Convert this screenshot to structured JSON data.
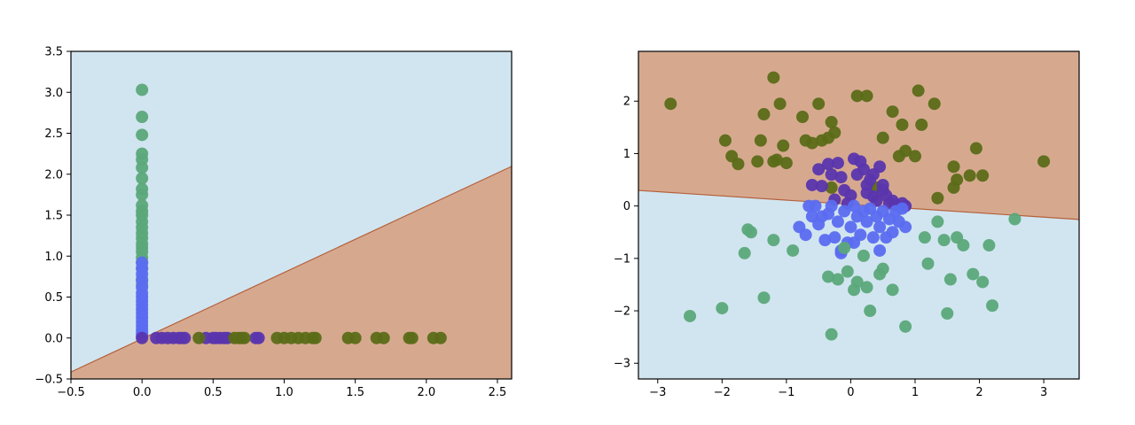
{
  "figure": {
    "background": "#ffffff"
  },
  "chart_data": [
    {
      "type": "scatter",
      "title": "",
      "xlabel": "",
      "ylabel": "",
      "xlim": [
        -0.5,
        2.6
      ],
      "ylim": [
        -0.5,
        3.5
      ],
      "xticks": [
        "−0.5",
        "0.0",
        "0.5",
        "1.0",
        "1.5",
        "2.0",
        "2.5"
      ],
      "xtick_values": [
        -0.5,
        0.0,
        0.5,
        1.0,
        1.5,
        2.0,
        2.5
      ],
      "yticks": [
        "−0.5",
        "0.0",
        "0.5",
        "1.0",
        "1.5",
        "2.0",
        "2.5",
        "3.0",
        "3.5"
      ],
      "ytick_values": [
        -0.5,
        0.0,
        0.5,
        1.0,
        1.5,
        2.0,
        2.5,
        3.0,
        3.5
      ],
      "grid": false,
      "legend": "none",
      "decision_regions": {
        "boundary_line": {
          "slope": 0.81,
          "intercept": -0.01
        },
        "above_color": "#d1e5f0",
        "below_color": "#d6a98f",
        "boundary_color": "#b5603a"
      },
      "series": [
        {
          "color": "#5ba87a",
          "x": [
            0.0,
            0.0,
            0.0,
            0.0,
            0.0,
            0.0,
            0.0,
            0.0,
            0.0,
            0.0,
            0.0,
            0.0,
            0.0,
            0.0,
            0.0,
            0.0,
            0.0,
            0.0,
            0.0,
            0.0,
            0.0,
            0.0,
            0.0,
            0.0
          ],
          "y": [
            3.03,
            2.7,
            2.48,
            2.25,
            2.18,
            2.08,
            1.95,
            1.82,
            1.75,
            1.62,
            1.55,
            1.5,
            1.42,
            1.35,
            1.28,
            1.22,
            1.15,
            1.1,
            1.05,
            0.98,
            0.92,
            0.85,
            0.72,
            0.65
          ]
        },
        {
          "color": "#5b6cf0",
          "x": [
            0.0,
            0.0,
            0.0,
            0.0,
            0.0,
            0.0,
            0.0,
            0.0,
            0.0,
            0.0,
            0.0,
            0.0,
            0.0,
            0.0,
            0.0,
            0.0,
            0.0
          ],
          "y": [
            0.92,
            0.85,
            0.78,
            0.7,
            0.62,
            0.55,
            0.5,
            0.45,
            0.4,
            0.35,
            0.3,
            0.25,
            0.2,
            0.15,
            0.1,
            0.06,
            0.03
          ]
        },
        {
          "color": "#5a35ad",
          "x": [
            0.0,
            0.1,
            0.14,
            0.18,
            0.22,
            0.26,
            0.28,
            0.3,
            0.45,
            0.5,
            0.52,
            0.55,
            0.58,
            0.6,
            0.8,
            0.82
          ],
          "y": [
            0.0,
            0.0,
            0.0,
            0.0,
            0.0,
            0.0,
            0.0,
            0.0,
            0.0,
            0.0,
            0.0,
            0.0,
            0.0,
            0.0,
            0.0,
            0.0
          ]
        },
        {
          "color": "#5b6b18",
          "x": [
            0.4,
            0.65,
            0.68,
            0.7,
            0.72,
            0.95,
            1.0,
            1.05,
            1.1,
            1.15,
            1.2,
            1.22,
            1.45,
            1.5,
            1.65,
            1.7,
            1.88,
            1.9,
            2.05,
            2.1
          ],
          "y": [
            0.0,
            0.0,
            0.0,
            0.0,
            0.0,
            0.0,
            0.0,
            0.0,
            0.0,
            0.0,
            0.0,
            0.0,
            0.0,
            0.0,
            0.0,
            0.0,
            0.0,
            0.0,
            0.0,
            0.0
          ]
        }
      ]
    },
    {
      "type": "scatter",
      "title": "",
      "xlabel": "",
      "ylabel": "",
      "xlim": [
        -3.3,
        3.55
      ],
      "ylim": [
        -3.3,
        2.95
      ],
      "xticks": [
        "−3",
        "−2",
        "−1",
        "0",
        "1",
        "2",
        "3"
      ],
      "xtick_values": [
        -3,
        -2,
        -1,
        0,
        1,
        2,
        3
      ],
      "yticks": [
        "−3",
        "−2",
        "−1",
        "0",
        "1",
        "2"
      ],
      "ytick_values": [
        -3,
        -2,
        -1,
        0,
        1,
        2
      ],
      "grid": false,
      "legend": "none",
      "decision_regions": {
        "boundary_line": {
          "slope": -0.081,
          "intercept": 0.03
        },
        "above_color": "#d6a98f",
        "below_color": "#d1e5f0",
        "boundary_color": "#b5603a"
      },
      "series": [
        {
          "color": "#5b6b18",
          "x": [
            -2.8,
            -1.95,
            -1.85,
            -1.75,
            -1.45,
            -1.4,
            -1.35,
            -1.2,
            -1.15,
            -1.1,
            -1.05,
            -1.0,
            -0.75,
            -0.7,
            -0.6,
            -0.5,
            -0.45,
            -0.35,
            -0.3,
            -0.25,
            -0.3,
            0.1,
            0.25,
            0.5,
            0.65,
            0.8,
            0.85,
            0.75,
            1.05,
            1.1,
            1.3,
            1.35,
            1.6,
            1.65,
            1.6,
            1.85,
            1.95,
            2.05,
            3.0,
            1.0,
            0.4,
            -1.2
          ],
          "y": [
            1.95,
            1.25,
            0.95,
            0.8,
            0.85,
            1.25,
            1.75,
            0.85,
            0.88,
            1.95,
            1.15,
            0.82,
            1.7,
            1.25,
            1.2,
            1.95,
            1.25,
            1.3,
            1.6,
            1.4,
            0.35,
            2.1,
            2.1,
            1.3,
            1.8,
            1.55,
            1.05,
            0.95,
            2.2,
            1.55,
            1.95,
            0.15,
            0.35,
            0.5,
            0.75,
            0.58,
            1.1,
            0.58,
            0.85,
            0.95,
            0.35,
            2.45
          ]
        },
        {
          "color": "#5a35ad",
          "x": [
            -0.6,
            -0.5,
            -0.45,
            -0.35,
            -0.3,
            -0.2,
            -0.15,
            -0.1,
            0.05,
            0.1,
            0.2,
            0.25,
            0.3,
            0.35,
            0.4,
            0.45,
            0.5,
            0.55,
            0.6,
            0.65,
            0.7,
            0.8,
            0.85,
            -0.25,
            0.0,
            0.15,
            0.35,
            0.5,
            -0.05,
            0.25
          ],
          "y": [
            0.4,
            0.7,
            0.38,
            0.8,
            0.6,
            0.82,
            0.55,
            0.3,
            0.9,
            0.6,
            0.7,
            0.25,
            0.5,
            0.18,
            0.1,
            0.75,
            0.4,
            0.2,
            0.05,
            0.1,
            0.02,
            0.05,
            0.0,
            0.12,
            0.2,
            0.85,
            0.6,
            0.3,
            0.05,
            0.4
          ]
        },
        {
          "color": "#5b6cf0",
          "x": [
            -0.8,
            -0.7,
            -0.6,
            -0.55,
            -0.5,
            -0.45,
            -0.4,
            -0.35,
            -0.3,
            -0.25,
            -0.2,
            -0.15,
            -0.1,
            -0.05,
            0.0,
            0.05,
            0.1,
            0.15,
            0.2,
            0.25,
            0.3,
            0.35,
            0.4,
            0.45,
            0.5,
            0.55,
            0.6,
            0.65,
            0.7,
            0.75,
            0.8,
            0.85,
            -0.65,
            -0.15,
            0.05,
            0.45
          ],
          "y": [
            -0.4,
            -0.55,
            -0.2,
            0.0,
            -0.35,
            -0.2,
            -0.65,
            -0.15,
            0.0,
            -0.6,
            -0.3,
            -0.85,
            -0.1,
            -0.7,
            -0.4,
            0.0,
            -0.2,
            -0.55,
            -0.1,
            -0.3,
            -0.05,
            -0.6,
            -0.2,
            -0.4,
            -0.1,
            -0.6,
            -0.25,
            -0.5,
            -0.1,
            -0.3,
            -0.05,
            -0.4,
            0.0,
            -0.9,
            -0.7,
            -0.85
          ]
        },
        {
          "color": "#5ba87a",
          "x": [
            -2.5,
            -2.0,
            -1.65,
            -1.6,
            -1.55,
            -1.35,
            -1.2,
            -0.9,
            -0.35,
            -0.3,
            -0.1,
            -0.05,
            0.05,
            0.1,
            0.25,
            0.3,
            0.45,
            0.5,
            0.65,
            0.85,
            1.15,
            1.2,
            1.35,
            1.45,
            1.5,
            1.65,
            1.75,
            1.9,
            2.05,
            2.15,
            2.2,
            2.55,
            1.55,
            0.2,
            -0.2
          ],
          "y": [
            -2.1,
            -1.95,
            -0.9,
            -0.45,
            -0.5,
            -1.75,
            -0.65,
            -0.85,
            -1.35,
            -2.45,
            -0.8,
            -1.25,
            -1.6,
            -1.45,
            -1.55,
            -2.0,
            -1.3,
            -1.2,
            -1.6,
            -2.3,
            -0.6,
            -1.1,
            -0.3,
            -0.65,
            -2.05,
            -0.6,
            -0.75,
            -1.3,
            -1.45,
            -0.75,
            -1.9,
            -0.25,
            -1.4,
            -0.95,
            -1.4
          ]
        }
      ]
    }
  ]
}
